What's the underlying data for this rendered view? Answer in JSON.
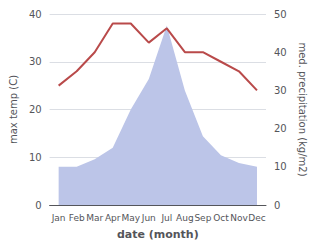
{
  "chart_data": {
    "type": "line",
    "categories": [
      "Jan",
      "Feb",
      "Mar",
      "Apr",
      "May",
      "Jun",
      "Jul",
      "Aug",
      "Sep",
      "Oct",
      "Nov",
      "Dec"
    ],
    "xlabel": "date (month)",
    "ylabel": "max temp (C)",
    "y2label": "med. precipitation (kg/m2)",
    "series": [
      {
        "type": "area",
        "axis": "y2",
        "color": "#bcc5e8",
        "values": [
          10,
          10,
          12,
          15,
          25,
          33,
          47,
          30,
          18,
          13,
          11,
          10
        ]
      },
      {
        "type": "line",
        "color": "#b94a4a",
        "values": [
          25,
          28,
          32,
          38,
          38,
          34,
          37,
          32,
          32,
          30,
          28,
          24
        ]
      }
    ],
    "ylim": [
      0,
      40
    ],
    "yticks": [
      0,
      10,
      20,
      30,
      40
    ],
    "y2lim": [
      0,
      50
    ],
    "y2ticks": [
      0,
      10,
      20,
      30,
      40,
      50
    ],
    "grid": true
  }
}
